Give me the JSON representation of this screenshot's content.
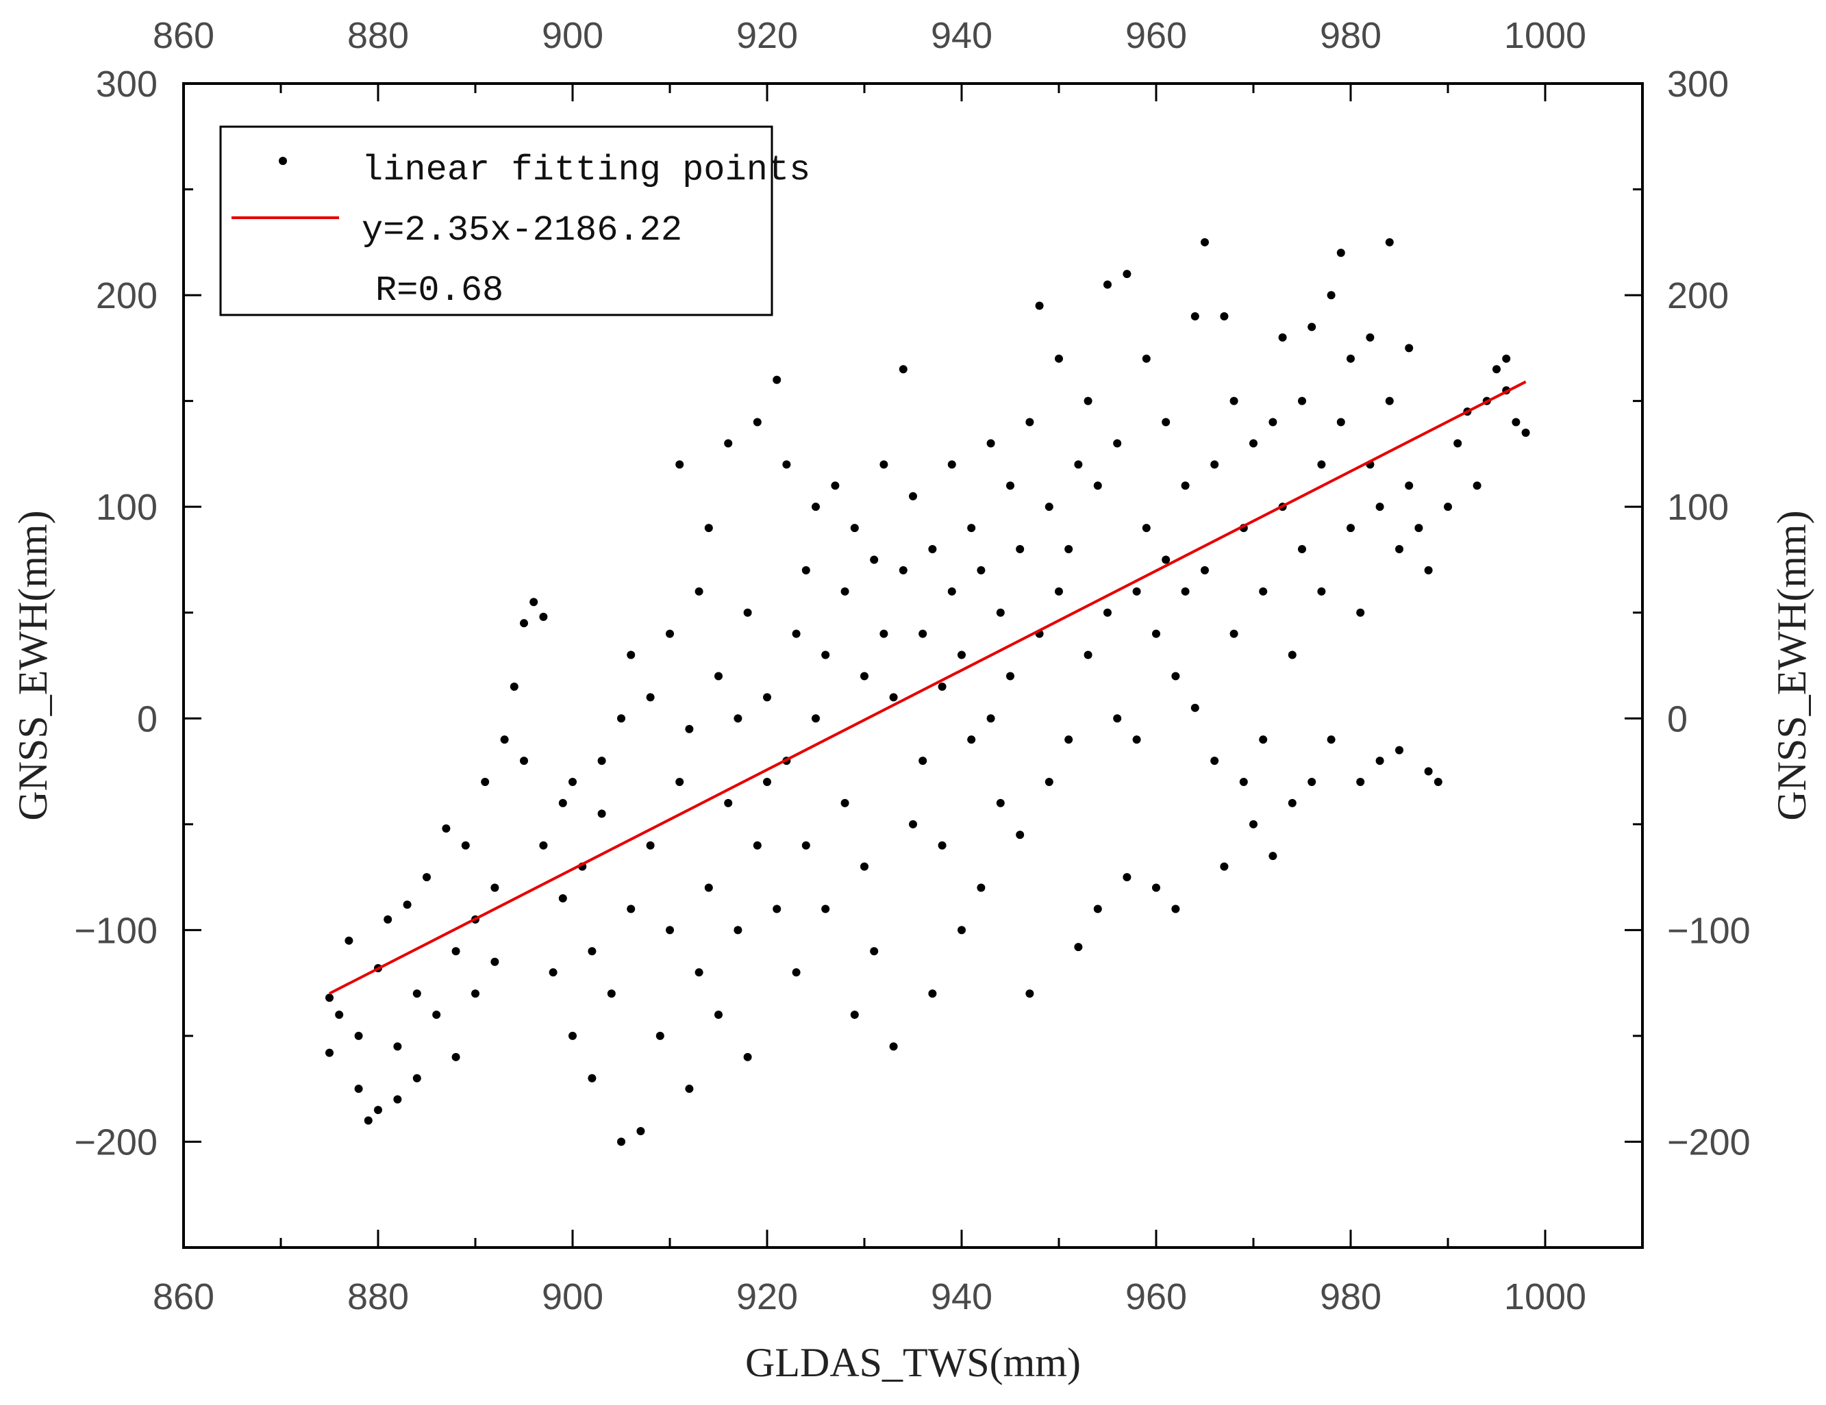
{
  "chart_data": {
    "type": "scatter",
    "title": "",
    "xlabel": "GLDAS_TWS(mm)",
    "ylabel": "GNSS_EWH(mm)",
    "y2label": "GNSS_EWH(mm)",
    "xlim": [
      860,
      1010
    ],
    "ylim": [
      -250,
      300
    ],
    "x_ticks": [
      "860",
      "880",
      "900",
      "920",
      "940",
      "960",
      "980",
      "1000"
    ],
    "y_ticks": [
      "300",
      "200",
      "100",
      "0",
      "−100",
      "−200"
    ],
    "x_tick_values": [
      860,
      880,
      900,
      920,
      940,
      960,
      980,
      1000
    ],
    "y_tick_values": [
      300,
      200,
      100,
      0,
      -100,
      -200
    ],
    "legend_position": "top-left",
    "legend": {
      "points_label": "linear fitting points",
      "fit_label": "y=2.35x-2186.22",
      "r_label": "R=0.68"
    },
    "fit": {
      "slope": 2.35,
      "intercept": -2186.22,
      "x_range": [
        875,
        998
      ],
      "color": "#e60000"
    },
    "point_color": "#000000",
    "series": [
      {
        "points": [
          [
            875,
            -132
          ],
          [
            875,
            -158
          ],
          [
            876,
            -140
          ],
          [
            877,
            -105
          ],
          [
            878,
            -150
          ],
          [
            878,
            -175
          ],
          [
            879,
            -190
          ],
          [
            880,
            -118
          ],
          [
            880,
            -185
          ],
          [
            881,
            -95
          ],
          [
            882,
            -155
          ],
          [
            882,
            -180
          ],
          [
            883,
            -88
          ],
          [
            884,
            -130
          ],
          [
            884,
            -170
          ],
          [
            885,
            -75
          ],
          [
            886,
            -140
          ],
          [
            887,
            -52
          ],
          [
            888,
            -110
          ],
          [
            888,
            -160
          ],
          [
            889,
            -60
          ],
          [
            890,
            -95
          ],
          [
            890,
            -130
          ],
          [
            891,
            -30
          ],
          [
            892,
            -80
          ],
          [
            892,
            -115
          ],
          [
            893,
            -10
          ],
          [
            894,
            15
          ],
          [
            895,
            45
          ],
          [
            895,
            -20
          ],
          [
            896,
            55
          ],
          [
            897,
            48
          ],
          [
            897,
            -60
          ],
          [
            898,
            -120
          ],
          [
            899,
            -40
          ],
          [
            899,
            -85
          ],
          [
            900,
            -30
          ],
          [
            900,
            -150
          ],
          [
            901,
            -70
          ],
          [
            902,
            -110
          ],
          [
            902,
            -170
          ],
          [
            903,
            -45
          ],
          [
            903,
            -20
          ],
          [
            904,
            -130
          ],
          [
            905,
            0
          ],
          [
            905,
            -200
          ],
          [
            906,
            -90
          ],
          [
            906,
            30
          ],
          [
            907,
            -195
          ],
          [
            908,
            -60
          ],
          [
            908,
            10
          ],
          [
            909,
            -150
          ],
          [
            910,
            40
          ],
          [
            910,
            -100
          ],
          [
            911,
            -30
          ],
          [
            911,
            120
          ],
          [
            912,
            -5
          ],
          [
            912,
            -175
          ],
          [
            913,
            60
          ],
          [
            913,
            -120
          ],
          [
            914,
            90
          ],
          [
            914,
            -80
          ],
          [
            915,
            20
          ],
          [
            915,
            -140
          ],
          [
            916,
            -40
          ],
          [
            916,
            130
          ],
          [
            917,
            0
          ],
          [
            917,
            -100
          ],
          [
            918,
            50
          ],
          [
            918,
            -160
          ],
          [
            919,
            -60
          ],
          [
            919,
            140
          ],
          [
            920,
            10
          ],
          [
            920,
            -30
          ],
          [
            921,
            160
          ],
          [
            921,
            -90
          ],
          [
            922,
            -20
          ],
          [
            922,
            120
          ],
          [
            923,
            40
          ],
          [
            923,
            -120
          ],
          [
            924,
            70
          ],
          [
            924,
            -60
          ],
          [
            925,
            0
          ],
          [
            925,
            100
          ],
          [
            926,
            -90
          ],
          [
            926,
            30
          ],
          [
            927,
            110
          ],
          [
            928,
            -40
          ],
          [
            928,
            60
          ],
          [
            929,
            -140
          ],
          [
            929,
            90
          ],
          [
            930,
            20
          ],
          [
            930,
            -70
          ],
          [
            931,
            75
          ],
          [
            931,
            -110
          ],
          [
            932,
            40
          ],
          [
            932,
            120
          ],
          [
            933,
            -155
          ],
          [
            933,
            10
          ],
          [
            934,
            165
          ],
          [
            934,
            70
          ],
          [
            935,
            -50
          ],
          [
            935,
            105
          ],
          [
            936,
            -20
          ],
          [
            936,
            40
          ],
          [
            937,
            80
          ],
          [
            937,
            -130
          ],
          [
            938,
            -60
          ],
          [
            938,
            15
          ],
          [
            939,
            60
          ],
          [
            939,
            120
          ],
          [
            940,
            -100
          ],
          [
            940,
            30
          ],
          [
            941,
            -10
          ],
          [
            941,
            90
          ],
          [
            942,
            70
          ],
          [
            942,
            -80
          ],
          [
            943,
            0
          ],
          [
            943,
            130
          ],
          [
            944,
            -40
          ],
          [
            944,
            50
          ],
          [
            945,
            20
          ],
          [
            945,
            110
          ],
          [
            946,
            -55
          ],
          [
            946,
            80
          ],
          [
            947,
            -130
          ],
          [
            947,
            140
          ],
          [
            948,
            40
          ],
          [
            948,
            195
          ],
          [
            949,
            -30
          ],
          [
            949,
            100
          ],
          [
            950,
            60
          ],
          [
            950,
            170
          ],
          [
            951,
            80
          ],
          [
            951,
            -10
          ],
          [
            952,
            120
          ],
          [
            952,
            -108
          ],
          [
            953,
            30
          ],
          [
            953,
            150
          ],
          [
            954,
            -90
          ],
          [
            954,
            110
          ],
          [
            955,
            50
          ],
          [
            955,
            205
          ],
          [
            956,
            0
          ],
          [
            956,
            130
          ],
          [
            957,
            210
          ],
          [
            957,
            -75
          ],
          [
            958,
            60
          ],
          [
            958,
            -10
          ],
          [
            959,
            170
          ],
          [
            959,
            90
          ],
          [
            960,
            40
          ],
          [
            960,
            -80
          ],
          [
            961,
            140
          ],
          [
            961,
            75
          ],
          [
            962,
            20
          ],
          [
            962,
            -90
          ],
          [
            963,
            110
          ],
          [
            963,
            60
          ],
          [
            964,
            5
          ],
          [
            964,
            190
          ],
          [
            965,
            225
          ],
          [
            965,
            70
          ],
          [
            966,
            120
          ],
          [
            966,
            -20
          ],
          [
            967,
            190
          ],
          [
            967,
            -70
          ],
          [
            968,
            40
          ],
          [
            968,
            150
          ],
          [
            969,
            -30
          ],
          [
            969,
            90
          ],
          [
            970,
            130
          ],
          [
            970,
            -50
          ],
          [
            971,
            60
          ],
          [
            971,
            -10
          ],
          [
            972,
            140
          ],
          [
            972,
            -65
          ],
          [
            973,
            180
          ],
          [
            973,
            100
          ],
          [
            974,
            30
          ],
          [
            974,
            -40
          ],
          [
            975,
            150
          ],
          [
            975,
            80
          ],
          [
            976,
            185
          ],
          [
            976,
            -30
          ],
          [
            977,
            120
          ],
          [
            977,
            60
          ],
          [
            978,
            200
          ],
          [
            978,
            -10
          ],
          [
            979,
            220
          ],
          [
            979,
            140
          ],
          [
            980,
            90
          ],
          [
            980,
            170
          ],
          [
            981,
            50
          ],
          [
            981,
            -30
          ],
          [
            982,
            120
          ],
          [
            982,
            180
          ],
          [
            983,
            100
          ],
          [
            983,
            -20
          ],
          [
            984,
            225
          ],
          [
            984,
            150
          ],
          [
            985,
            80
          ],
          [
            985,
            -15
          ],
          [
            986,
            175
          ],
          [
            986,
            110
          ],
          [
            987,
            90
          ],
          [
            988,
            70
          ],
          [
            988,
            -25
          ],
          [
            989,
            -30
          ],
          [
            990,
            100
          ],
          [
            991,
            130
          ],
          [
            992,
            145
          ],
          [
            993,
            110
          ],
          [
            994,
            150
          ],
          [
            995,
            165
          ],
          [
            996,
            170
          ],
          [
            996,
            155
          ],
          [
            997,
            140
          ],
          [
            998,
            135
          ]
        ]
      }
    ]
  }
}
